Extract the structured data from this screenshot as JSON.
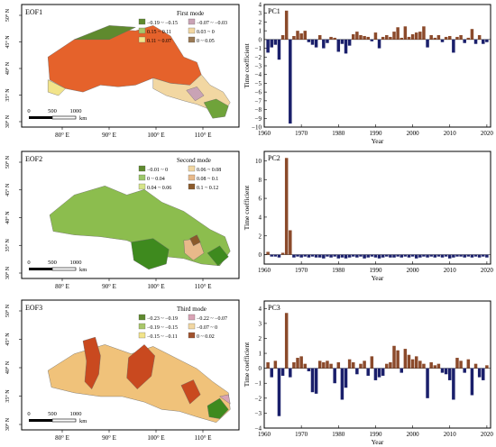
{
  "colors": {
    "positive_bar": "#8b4a2b",
    "negative_bar": "#1a1f6b",
    "frame": "#000000",
    "map": [
      "#5f8a2e",
      "#8cbd4e",
      "#b7d77f",
      "#f5d28f",
      "#f0c27a",
      "#d4a373",
      "#e5622b"
    ]
  },
  "maps": [
    {
      "title": "EOF1",
      "mode_label": "First mode",
      "legend": [
        {
          "label": "−0.19 ~ −0.15",
          "color": "#5f8a2e"
        },
        {
          "label": "−0.07 ~ −0.03",
          "color": "#c9a3b5"
        },
        {
          "label": "0.15 ~ 0.11",
          "color": "#a8c66a"
        },
        {
          "label": "0.03 ~ 0",
          "color": "#f2d7a2"
        },
        {
          "label": "0.11 ~ 0.07",
          "color": "#f2e48a"
        },
        {
          "label": "0 ~ 0.05",
          "color": "#9b7a55"
        }
      ],
      "lat_ticks": [
        "50° N",
        "45° N",
        "40° N",
        "35° N",
        "30° N"
      ],
      "lon_ticks": [
        "80° E",
        "90° E",
        "100° E",
        "110° E"
      ],
      "scale": [
        "0",
        "500",
        "1000"
      ],
      "scale_unit": "km"
    },
    {
      "title": "EOF2",
      "mode_label": "Second mode",
      "legend": [
        {
          "label": "−0.01 ~ 0",
          "color": "#5f8a2e"
        },
        {
          "label": "0.06 ~ 0.08",
          "color": "#f2d7a2"
        },
        {
          "label": "0 ~ 0.04",
          "color": "#9cc86a"
        },
        {
          "label": "0.08 ~ 0.1",
          "color": "#e8b98a"
        },
        {
          "label": "0.04 ~ 0.06",
          "color": "#d6e58a"
        },
        {
          "label": "0.1 ~ 0.12",
          "color": "#8b5a2b"
        }
      ],
      "lat_ticks": [
        "50° N",
        "45° N",
        "40° N",
        "35° N",
        "30° N"
      ],
      "lon_ticks": [
        "80° E",
        "90° E",
        "100° E",
        "110° E"
      ],
      "scale": [
        "0",
        "500",
        "1000"
      ],
      "scale_unit": "km"
    },
    {
      "title": "EOF3",
      "mode_label": "Third mode",
      "legend": [
        {
          "label": "−0.23 ~ −0.19",
          "color": "#5f8a2e"
        },
        {
          "label": "−0.22 ~ −0.07",
          "color": "#d9a3b5"
        },
        {
          "label": "−0.19 ~ −0.15",
          "color": "#a8c66a"
        },
        {
          "label": "−0.07 ~ 0",
          "color": "#f2d7a2"
        },
        {
          "label": "−0.15 ~ −0.11",
          "color": "#f2e48a"
        },
        {
          "label": "0 ~ 0.02",
          "color": "#a0522d"
        }
      ],
      "lat_ticks": [
        "50° N",
        "45° N",
        "40° N",
        "35° N",
        "30° N"
      ],
      "lon_ticks": [
        "80° E",
        "90° E",
        "100° E",
        "110° E"
      ],
      "scale": [
        "0",
        "500",
        "1000"
      ],
      "scale_unit": "km"
    }
  ],
  "chart_data": [
    {
      "type": "bar",
      "title": "PC1",
      "xlabel": "Year",
      "ylabel": "Time coefficient",
      "xlim": [
        1960,
        2021
      ],
      "ylim": [
        -10,
        4
      ],
      "yticks": [
        4,
        3,
        2,
        1,
        0,
        -1,
        -2,
        -3,
        -4,
        -5,
        -6,
        -7,
        -8,
        -9,
        -10
      ],
      "xticks": [
        1960,
        1970,
        1980,
        1990,
        2000,
        2010,
        2020
      ],
      "x": [
        1961,
        1962,
        1963,
        1964,
        1965,
        1966,
        1967,
        1968,
        1969,
        1970,
        1971,
        1972,
        1973,
        1974,
        1975,
        1976,
        1977,
        1978,
        1979,
        1980,
        1981,
        1982,
        1983,
        1984,
        1985,
        1986,
        1987,
        1988,
        1989,
        1990,
        1991,
        1992,
        1993,
        1994,
        1995,
        1996,
        1997,
        1998,
        1999,
        2000,
        2001,
        2002,
        2003,
        2004,
        2005,
        2006,
        2007,
        2008,
        2009,
        2010,
        2011,
        2012,
        2013,
        2014,
        2015,
        2016,
        2017,
        2018,
        2019,
        2020
      ],
      "values": [
        -1.5,
        -0.9,
        -0.6,
        -2.3,
        0.5,
        3.3,
        -9.6,
        0.4,
        1.0,
        0.7,
        1.0,
        -0.3,
        -0.6,
        -0.9,
        0.5,
        -1.0,
        -0.4,
        0.3,
        0.2,
        -1.4,
        -0.5,
        -1.6,
        -0.7,
        0.6,
        0.9,
        0.5,
        0.4,
        0.3,
        -0.2,
        0.8,
        -1.0,
        0.3,
        0.5,
        0.3,
        0.9,
        1.4,
        0.2,
        1.5,
        0.3,
        0.6,
        0.8,
        0.9,
        1.5,
        -0.9,
        0.5,
        0.2,
        0.5,
        -0.3,
        0.3,
        0.4,
        -1.5,
        0.3,
        0.5,
        -0.4,
        0.2,
        1.2,
        -0.5,
        0.5,
        -0.5,
        -0.3
      ]
    },
    {
      "type": "bar",
      "title": "PC2",
      "xlabel": "Year",
      "ylabel": "Time coefficient",
      "xlim": [
        1960,
        2021
      ],
      "ylim": [
        -1,
        11
      ],
      "yticks": [
        10,
        8,
        6,
        4,
        2,
        0
      ],
      "xticks": [
        1960,
        1970,
        1980,
        1990,
        2000,
        2010,
        2020
      ],
      "x": [
        1961,
        1962,
        1963,
        1964,
        1965,
        1966,
        1967,
        1968,
        1969,
        1970,
        1971,
        1972,
        1973,
        1974,
        1975,
        1976,
        1977,
        1978,
        1979,
        1980,
        1981,
        1982,
        1983,
        1984,
        1985,
        1986,
        1987,
        1988,
        1989,
        1990,
        1991,
        1992,
        1993,
        1994,
        1995,
        1996,
        1997,
        1998,
        1999,
        2000,
        2001,
        2002,
        2003,
        2004,
        2005,
        2006,
        2007,
        2008,
        2009,
        2010,
        2011,
        2012,
        2013,
        2014,
        2015,
        2016,
        2017,
        2018,
        2019,
        2020
      ],
      "values": [
        0.3,
        -0.2,
        -0.2,
        -0.3,
        0.2,
        10.3,
        2.6,
        -0.3,
        -0.2,
        -0.3,
        -0.2,
        -0.3,
        -0.2,
        -0.3,
        -0.3,
        -0.4,
        -0.2,
        -0.3,
        -0.2,
        -0.4,
        -0.3,
        -0.4,
        -0.3,
        -0.2,
        -0.3,
        -0.2,
        -0.4,
        -0.3,
        -0.2,
        -0.3,
        -0.4,
        -0.3,
        -0.2,
        -0.3,
        -0.3,
        -0.2,
        -0.3,
        -0.2,
        -0.3,
        -0.2,
        -0.4,
        -0.3,
        -0.2,
        -0.3,
        -0.2,
        -0.3,
        -0.2,
        -0.3,
        -0.2,
        -0.4,
        -0.3,
        -0.2,
        -0.2,
        -0.3,
        -0.2,
        -0.3,
        -0.2,
        -0.3,
        -0.2,
        -0.3
      ]
    },
    {
      "type": "bar",
      "title": "PC3",
      "xlabel": "Year",
      "ylabel": "Time coefficient",
      "xlim": [
        1960,
        2021
      ],
      "ylim": [
        -4,
        4.5
      ],
      "yticks": [
        4,
        3,
        2,
        1,
        0,
        -1,
        -2,
        -3,
        -4
      ],
      "xticks": [
        1960,
        1970,
        1980,
        1990,
        2000,
        2010,
        2020
      ],
      "x": [
        1961,
        1962,
        1963,
        1964,
        1965,
        1966,
        1967,
        1968,
        1969,
        1970,
        1971,
        1972,
        1973,
        1974,
        1975,
        1976,
        1977,
        1978,
        1979,
        1980,
        1981,
        1982,
        1983,
        1984,
        1985,
        1986,
        1987,
        1988,
        1989,
        1990,
        1991,
        1992,
        1993,
        1994,
        1995,
        1996,
        1997,
        1998,
        1999,
        2000,
        2001,
        2002,
        2003,
        2004,
        2005,
        2006,
        2007,
        2008,
        2009,
        2010,
        2011,
        2012,
        2013,
        2014,
        2015,
        2016,
        2017,
        2018,
        2019,
        2020
      ],
      "values": [
        0.4,
        -0.6,
        0.5,
        -3.2,
        -0.5,
        3.7,
        -0.6,
        0.4,
        0.7,
        0.8,
        0.3,
        -0.2,
        -1.6,
        -1.7,
        0.5,
        0.4,
        0.5,
        0.3,
        -1.0,
        0.4,
        -2.1,
        -1.3,
        0.6,
        0.4,
        -0.4,
        0.3,
        0.5,
        -0.5,
        0.8,
        -0.8,
        -0.6,
        -0.5,
        0.3,
        0.4,
        1.5,
        1.2,
        -0.3,
        1.3,
        0.9,
        0.6,
        0.8,
        0.5,
        0.3,
        -2.0,
        0.4,
        0.2,
        0.3,
        -0.3,
        -0.4,
        -0.8,
        -2.1,
        0.7,
        0.5,
        -0.3,
        0.6,
        -1.8,
        0.3,
        -0.6,
        -0.8,
        0.2
      ]
    }
  ]
}
